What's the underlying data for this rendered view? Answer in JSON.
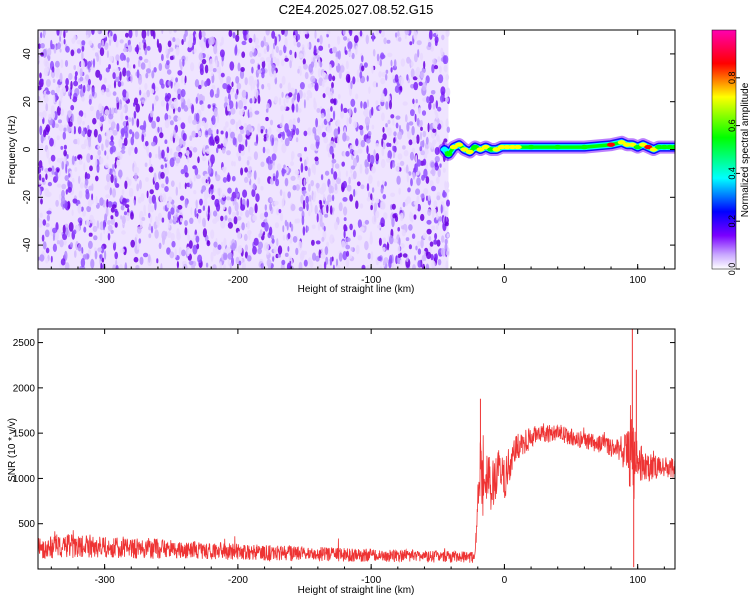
{
  "title": "C2E4.2025.027.08.52.G15",
  "chart_data": [
    {
      "type": "heatmap",
      "xlabel": "Height of straight line (km)",
      "ylabel": "Frequency (Hz)",
      "xlim": [
        -350,
        128
      ],
      "ylim": [
        -50,
        50
      ],
      "x_ticks": [
        -300,
        -200,
        -100,
        0,
        100
      ],
      "y_ticks": [
        -40,
        -20,
        0,
        20,
        40
      ],
      "noise_region_x": [
        -350,
        -42
      ],
      "ridge": {
        "x": [
          -45,
          -42,
          -38,
          -34,
          -30,
          -26,
          -22,
          -18,
          -14,
          -10,
          -6,
          -2,
          2,
          6,
          10,
          20,
          40,
          60,
          80,
          88,
          92,
          96,
          100,
          104,
          108,
          112,
          116,
          120,
          124,
          128
        ],
        "frequency": [
          0,
          -2,
          1,
          2,
          0,
          -1,
          1,
          0,
          1,
          0,
          0,
          1,
          1,
          1,
          1,
          1,
          1,
          1,
          2,
          3,
          2,
          2,
          1,
          2,
          1,
          0,
          1,
          1,
          1,
          1
        ],
        "amplitude": [
          0.35,
          0.55,
          0.6,
          0.7,
          0.65,
          0.6,
          0.55,
          0.7,
          0.6,
          0.55,
          0.6,
          0.6,
          0.7,
          0.72,
          0.7,
          0.55,
          0.5,
          0.55,
          0.75,
          0.7,
          0.65,
          0.6,
          0.55,
          0.7,
          0.75,
          0.6,
          0.55,
          0.5,
          0.55,
          0.5
        ]
      },
      "colorbar": {
        "label": "Normalized spectral amplitude",
        "range": [
          0,
          1
        ],
        "ticks": [
          "0.0",
          "0.2",
          "0.4",
          "0.6",
          "0.8"
        ],
        "colors": [
          "#ffffff",
          "#7a00ff",
          "#0000ff",
          "#00ffff",
          "#00ff00",
          "#ffff00",
          "#ff0000",
          "#ff00b0"
        ]
      },
      "grid": false
    },
    {
      "type": "line",
      "xlabel": "Height of straight line (km)",
      "ylabel": "SNR (10 * v/v)",
      "xlim": [
        -350,
        128
      ],
      "ylim": [
        0,
        2650
      ],
      "x_ticks": [
        -300,
        -200,
        -100,
        0,
        100
      ],
      "y_ticks": [
        500,
        1000,
        1500,
        2000,
        2500
      ],
      "color": "#ee3333",
      "grid": false,
      "series": [
        {
          "x": [
            -350,
            -340,
            -330,
            -320,
            -310,
            -300,
            -290,
            -280,
            -270,
            -260,
            -250,
            -240,
            -230,
            -220,
            -210,
            -200,
            -190,
            -180,
            -170,
            -160,
            -150,
            -140,
            -130,
            -120,
            -110,
            -100,
            -90,
            -80,
            -70,
            -60,
            -50,
            -40,
            -30,
            -22,
            -20,
            -18,
            -16,
            -14,
            -10,
            -5,
            0,
            5,
            10,
            15,
            20,
            25,
            30,
            35,
            40,
            45,
            50,
            55,
            60,
            65,
            70,
            75,
            80,
            85,
            90,
            94,
            96,
            98,
            100,
            104,
            110,
            115,
            120,
            125,
            128
          ],
          "y": [
            230,
            240,
            250,
            245,
            240,
            240,
            235,
            230,
            225,
            220,
            215,
            210,
            205,
            200,
            195,
            190,
            185,
            180,
            175,
            172,
            168,
            165,
            160,
            158,
            155,
            150,
            148,
            145,
            143,
            140,
            138,
            135,
            132,
            130,
            800,
            1100,
            850,
            1050,
            900,
            1100,
            1000,
            1200,
            1350,
            1400,
            1450,
            1480,
            1500,
            1510,
            1500,
            1480,
            1460,
            1440,
            1420,
            1400,
            1380,
            1360,
            1340,
            1320,
            1280,
            1250,
            1100,
            1300,
            1200,
            1150,
            1120,
            1130,
            1140,
            1120,
            1100
          ],
          "spread": [
            120,
            130,
            140,
            130,
            125,
            120,
            120,
            115,
            110,
            110,
            105,
            100,
            100,
            95,
            95,
            90,
            90,
            88,
            85,
            85,
            82,
            80,
            80,
            78,
            75,
            75,
            72,
            70,
            70,
            68,
            66,
            65,
            64,
            62,
            200,
            350,
            300,
            300,
            280,
            260,
            240,
            200,
            150,
            130,
            120,
            115,
            110,
            110,
            105,
            100,
            100,
            100,
            100,
            100,
            100,
            100,
            100,
            110,
            200,
            350,
            600,
            400,
            250,
            180,
            150,
            130,
            120,
            115,
            110
          ]
        }
      ]
    }
  ]
}
